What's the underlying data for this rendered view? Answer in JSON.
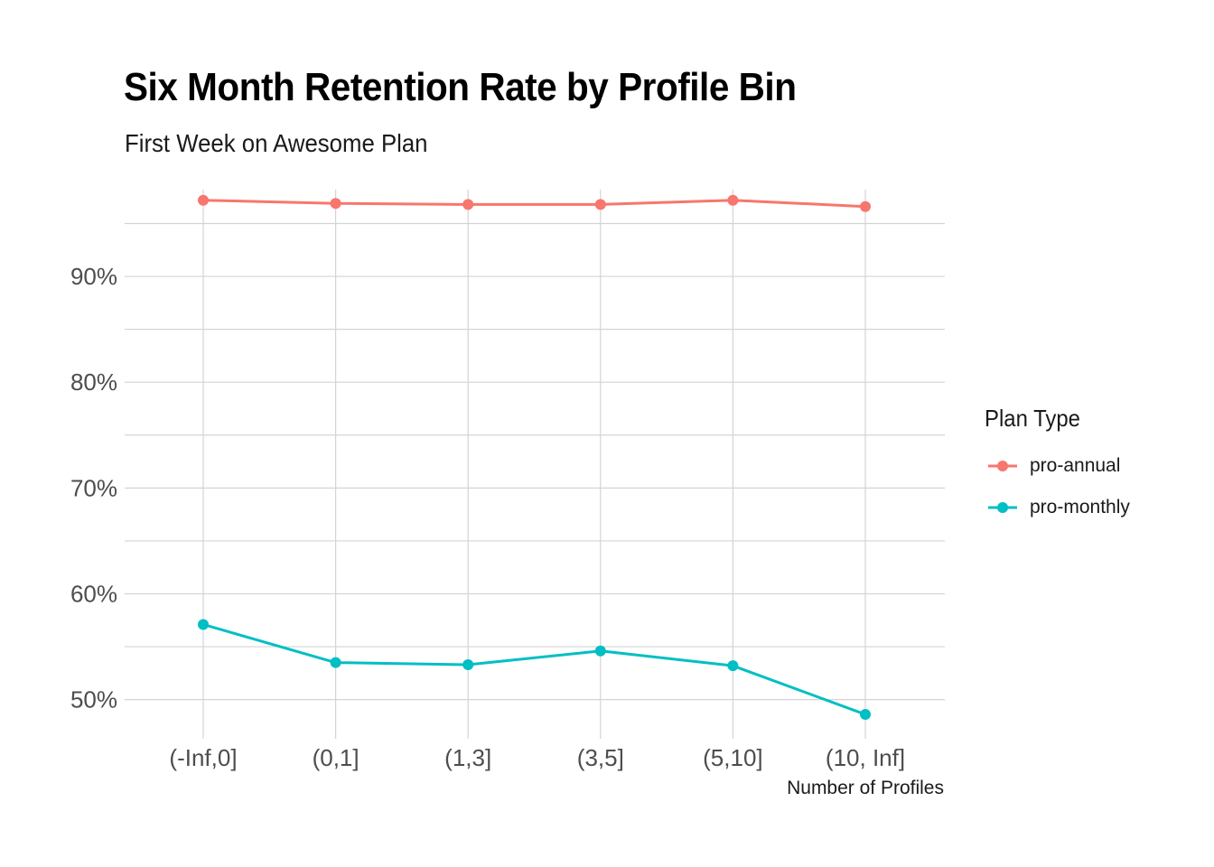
{
  "chart_data": {
    "type": "line",
    "title": "Six Month Retention Rate by Profile Bin",
    "subtitle": "First Week on Awesome Plan",
    "xlabel": "Number of Profiles",
    "ylabel": "",
    "categories": [
      "(-Inf,0]",
      "(0,1]",
      "(1,3]",
      "(3,5]",
      "(5,10]",
      "(10, Inf]"
    ],
    "y_ticks": [
      50,
      60,
      70,
      80,
      90
    ],
    "y_tick_labels": [
      "50%",
      "60%",
      "70%",
      "80%",
      "90%"
    ],
    "ylim": [
      46.3,
      98.2
    ],
    "grid": true,
    "legend_position": "right",
    "legend_title": "Plan Type",
    "series": [
      {
        "name": "pro-annual",
        "color": "#F8766D",
        "values": [
          97.2,
          96.9,
          96.8,
          96.8,
          97.2,
          96.6
        ]
      },
      {
        "name": "pro-monthly",
        "color": "#00BFC4",
        "values": [
          57.1,
          53.5,
          53.3,
          54.6,
          53.2,
          48.6
        ]
      }
    ]
  }
}
